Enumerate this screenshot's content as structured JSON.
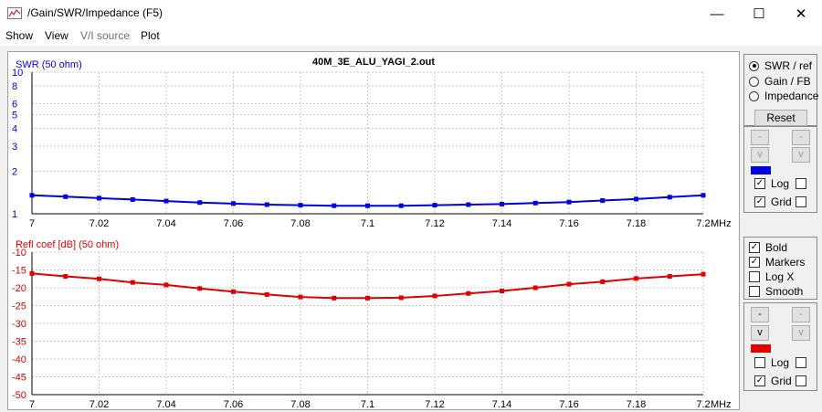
{
  "window": {
    "title": "/Gain/SWR/Impedance (F5)",
    "minimize_glyph": "—",
    "maximize_glyph": "☐",
    "close_glyph": "✕"
  },
  "menu": [
    "Show",
    "View",
    "V/I source",
    "Plot"
  ],
  "chart_data": [
    {
      "type": "line",
      "title": "40M_3E_ALU_YAGI_2.out",
      "ylabel": "SWR (50 ohm)",
      "xunit": "MHz",
      "x": [
        7.0,
        7.01,
        7.02,
        7.03,
        7.04,
        7.05,
        7.06,
        7.07,
        7.08,
        7.09,
        7.1,
        7.11,
        7.12,
        7.13,
        7.14,
        7.15,
        7.16,
        7.17,
        7.18,
        7.19,
        7.2
      ],
      "xlim": [
        7.0,
        7.2
      ],
      "xticks": [
        "7",
        "7.02",
        "7.04",
        "7.06",
        "7.08",
        "7.1",
        "7.12",
        "7.14",
        "7.16",
        "7.18",
        "7.2"
      ],
      "ylim": [
        1,
        10
      ],
      "yscale": "log",
      "yticks": [
        "1",
        "2",
        "3",
        "4",
        "5",
        "6",
        "8",
        "10"
      ],
      "grid": true,
      "markers": true,
      "series": [
        {
          "color": "#0000e0",
          "values": [
            1.35,
            1.32,
            1.29,
            1.26,
            1.23,
            1.2,
            1.18,
            1.16,
            1.15,
            1.14,
            1.14,
            1.14,
            1.15,
            1.16,
            1.17,
            1.19,
            1.21,
            1.24,
            1.27,
            1.31,
            1.35
          ]
        }
      ]
    },
    {
      "type": "line",
      "ylabel": "Refl coef [dB] (50 ohm)",
      "xunit": "MHz",
      "x": [
        7.0,
        7.01,
        7.02,
        7.03,
        7.04,
        7.05,
        7.06,
        7.07,
        7.08,
        7.09,
        7.1,
        7.11,
        7.12,
        7.13,
        7.14,
        7.15,
        7.16,
        7.17,
        7.18,
        7.19,
        7.2
      ],
      "xlim": [
        7.0,
        7.2
      ],
      "xticks": [
        "7",
        "7.02",
        "7.04",
        "7.06",
        "7.08",
        "7.1",
        "7.12",
        "7.14",
        "7.16",
        "7.18",
        "7.2"
      ],
      "ylim": [
        -50,
        -10
      ],
      "yticks": [
        "-10",
        "-15",
        "-20",
        "-25",
        "-30",
        "-35",
        "-40",
        "-45",
        "-50"
      ],
      "grid": true,
      "markers": true,
      "series": [
        {
          "color": "#e00000",
          "values": [
            -16.0,
            -16.8,
            -17.5,
            -18.5,
            -19.2,
            -20.2,
            -21.1,
            -21.9,
            -22.6,
            -22.9,
            -22.9,
            -22.8,
            -22.3,
            -21.6,
            -20.9,
            -20.0,
            -19.0,
            -18.3,
            -17.4,
            -16.8,
            -16.2
          ]
        }
      ]
    }
  ],
  "sidebar": {
    "radios": [
      {
        "label": "SWR / ref",
        "checked": true
      },
      {
        "label": "Gain / FB",
        "checked": false
      },
      {
        "label": "Impedance",
        "checked": false
      }
    ],
    "reset_label": "Reset",
    "top": {
      "up_label": "-",
      "down_label": "v",
      "swatch_color": "#0000e0",
      "log_label": "Log",
      "log_checked": true,
      "grid_label": "Grid",
      "grid_checked": true
    },
    "options": [
      {
        "label": "Bold",
        "checked": true
      },
      {
        "label": "Markers",
        "checked": true
      },
      {
        "label": "Log X",
        "checked": false
      },
      {
        "label": "Smooth",
        "checked": false
      }
    ],
    "bottom": {
      "up_label": "-",
      "down_label": "v",
      "swatch_color": "#e00000",
      "log_label": "Log",
      "log_checked": false,
      "grid_label": "Grid",
      "grid_checked": true
    },
    "check_mark": "✓"
  }
}
